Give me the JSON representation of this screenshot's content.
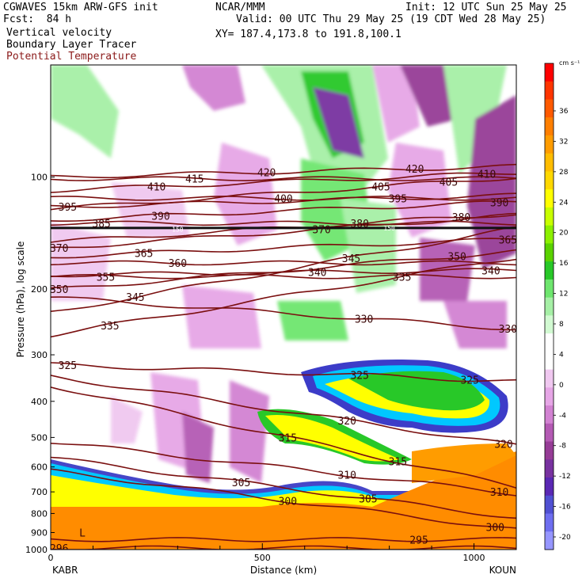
{
  "header": {
    "model": "CGWAVES 15km ARW-GFS init",
    "center": "NCAR/MMM",
    "init": "Init: 12 UTC Sun 25 May 25",
    "fcst": "Fcst:  84 h",
    "valid": "Valid: 00 UTC Thu 29 May 25 (19 CDT Wed 28 May 25)",
    "field1": "Vertical velocity",
    "field2": "Boundary Layer Tracer",
    "field3": "Potential Temperature",
    "xy": "XY= 187.4,173.8 to 191.8,100.1"
  },
  "colors": {
    "theta_line": "#7a0f0f",
    "title_red": "#8b1a1a",
    "tracer_fill": "#ff8c00"
  },
  "chart_data": {
    "type": "heatmap",
    "xlabel": "Distance (km)",
    "ylabel": "Pressure (hPa), log scale",
    "xlim": [
      0,
      1100
    ],
    "ylim": [
      1000,
      50
    ],
    "y_scale": "log",
    "x_ticks": [
      "0",
      "500",
      "1000"
    ],
    "y_ticks": [
      "100",
      "200",
      "300",
      "400",
      "500",
      "600",
      "700",
      "800",
      "900",
      "1000"
    ],
    "endpoints": {
      "left": "KABR",
      "right": "KOUN"
    },
    "colorbar": {
      "units": "cm s⁻¹",
      "labels": [
        "36",
        "32",
        "28",
        "24",
        "20",
        "16",
        "12",
        "8",
        "4",
        "0",
        "-4",
        "-8",
        "-12",
        "-16",
        "-20"
      ],
      "colors": [
        "#ff0000",
        "#ff3500",
        "#ff5a00",
        "#ff7f00",
        "#ff9c00",
        "#ffbd00",
        "#ffd800",
        "#ffff00",
        "#c8ff00",
        "#8cf000",
        "#5ad200",
        "#28c828",
        "#6ee66e",
        "#a6f0a6",
        "#d2fad2",
        "#ffffff",
        "#ffffff",
        "#f0c8f0",
        "#e6a6e6",
        "#d282d2",
        "#b45ab4",
        "#963c96",
        "#7832a0",
        "#5a28b4",
        "#5050d2",
        "#6e6ef0",
        "#9696ff"
      ]
    },
    "isentropes": [
      {
        "value": 296,
        "label": "296",
        "x": 20,
        "p": 990
      },
      {
        "value": 295,
        "label": "295",
        "x": 870,
        "p": 940
      },
      {
        "value": 300,
        "label": "300",
        "x": 560,
        "p": 740
      },
      {
        "value": 300,
        "label": "300",
        "x": 1050,
        "p": 870
      },
      {
        "value": 305,
        "label": "305",
        "x": 450,
        "p": 660
      },
      {
        "value": 305,
        "label": "305",
        "x": 750,
        "p": 730
      },
      {
        "value": 310,
        "label": "310",
        "x": 700,
        "p": 630
      },
      {
        "value": 310,
        "label": "310",
        "x": 1060,
        "p": 700
      },
      {
        "value": 315,
        "label": "315",
        "x": 560,
        "p": 500
      },
      {
        "value": 315,
        "label": "315",
        "x": 820,
        "p": 580
      },
      {
        "value": 320,
        "label": "320",
        "x": 700,
        "p": 450
      },
      {
        "value": 320,
        "label": "320",
        "x": 1070,
        "p": 520
      },
      {
        "value": 325,
        "label": "325",
        "x": 40,
        "p": 320
      },
      {
        "value": 325,
        "label": "325",
        "x": 730,
        "p": 340
      },
      {
        "value": 325,
        "label": "325",
        "x": 990,
        "p": 350
      },
      {
        "value": 330,
        "label": "330",
        "x": 740,
        "p": 240
      },
      {
        "value": 330,
        "label": "330",
        "x": 1080,
        "p": 255
      },
      {
        "value": 335,
        "label": "335",
        "x": 140,
        "p": 250
      },
      {
        "value": 335,
        "label": "335",
        "x": 830,
        "p": 185
      },
      {
        "value": 340,
        "label": "340",
        "x": 630,
        "p": 180
      },
      {
        "value": 340,
        "label": "340",
        "x": 1040,
        "p": 178
      },
      {
        "value": 345,
        "label": "345",
        "x": 200,
        "p": 210
      },
      {
        "value": 345,
        "label": "345",
        "x": 710,
        "p": 165
      },
      {
        "value": 350,
        "label": "350",
        "x": 20,
        "p": 200
      },
      {
        "value": 350,
        "label": "350",
        "x": 960,
        "p": 163
      },
      {
        "value": 355,
        "label": "355",
        "x": 130,
        "p": 185
      },
      {
        "value": 360,
        "label": "360",
        "x": 300,
        "p": 170
      },
      {
        "value": 365,
        "label": "365",
        "x": 220,
        "p": 160
      },
      {
        "value": 365,
        "label": "365",
        "x": 1080,
        "p": 147
      },
      {
        "value": 370,
        "label": "370",
        "x": 20,
        "p": 155
      },
      {
        "value": 370,
        "label": "370",
        "x": 640,
        "p": 138
      },
      {
        "value": 380,
        "label": "380",
        "x": 730,
        "p": 133
      },
      {
        "value": 380,
        "label": "380",
        "x": 970,
        "p": 128
      },
      {
        "value": 385,
        "label": "385",
        "x": 120,
        "p": 133
      },
      {
        "value": 390,
        "label": "390",
        "x": 260,
        "p": 127
      },
      {
        "value": 390,
        "label": "390",
        "x": 1060,
        "p": 117
      },
      {
        "value": 395,
        "label": "395",
        "x": 40,
        "p": 120
      },
      {
        "value": 395,
        "label": "395",
        "x": 820,
        "p": 114
      },
      {
        "value": 400,
        "label": "400",
        "x": 550,
        "p": 114
      },
      {
        "value": 405,
        "label": "405",
        "x": 780,
        "p": 106
      },
      {
        "value": 405,
        "label": "405",
        "x": 940,
        "p": 103
      },
      {
        "value": 410,
        "label": "410",
        "x": 250,
        "p": 106
      },
      {
        "value": 410,
        "label": "410",
        "x": 1030,
        "p": 98
      },
      {
        "value": 415,
        "label": "415",
        "x": 340,
        "p": 101
      },
      {
        "value": 420,
        "label": "420",
        "x": 510,
        "p": 97
      },
      {
        "value": 420,
        "label": "420",
        "x": 860,
        "p": 95
      }
    ],
    "small_labels": [
      {
        "label": "150",
        "x": 300,
        "p": 138
      },
      {
        "label": "150",
        "x": 800,
        "p": 137
      }
    ],
    "terrain_label": {
      "label": "L",
      "x": 75,
      "p": 900
    }
  }
}
